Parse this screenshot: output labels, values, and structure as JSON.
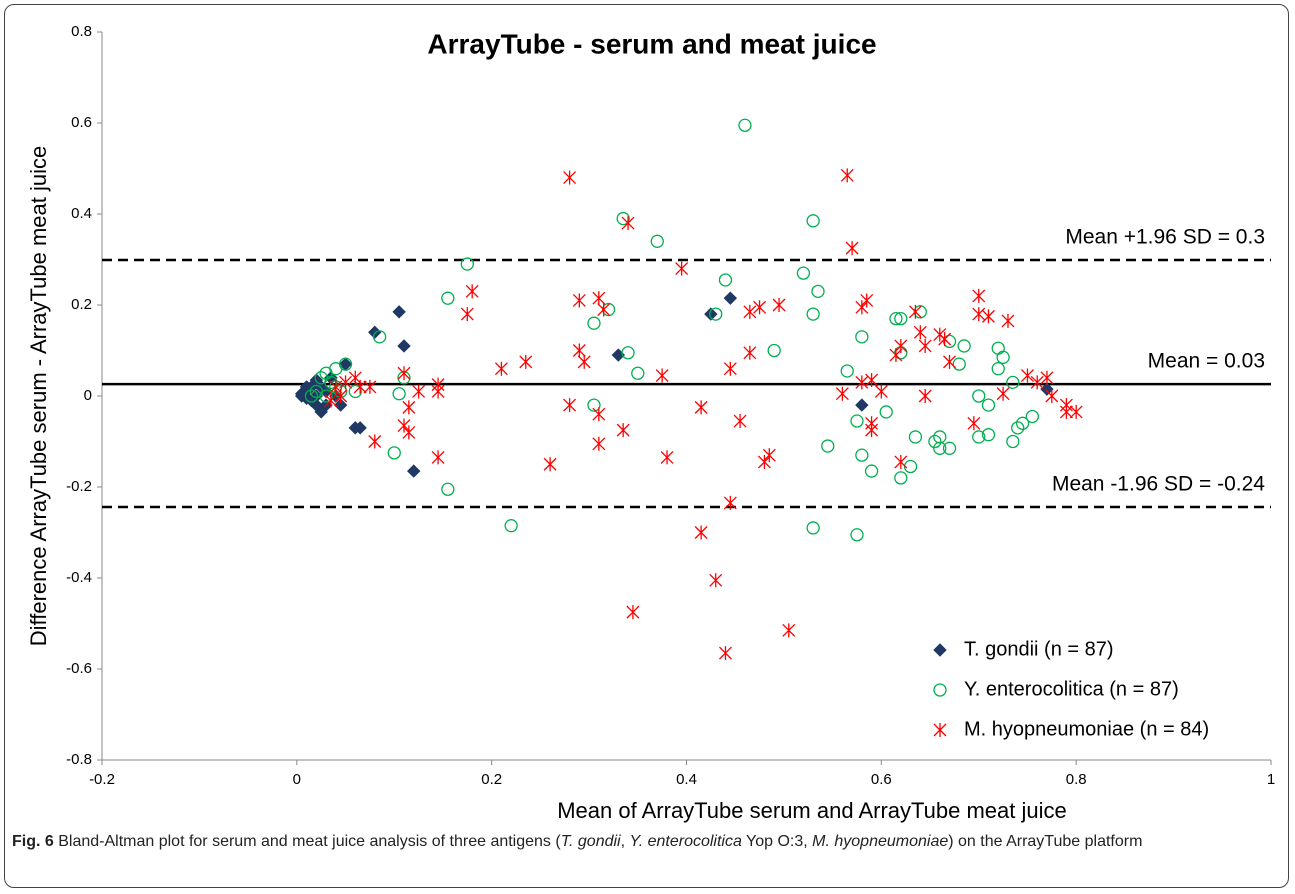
{
  "chart_data": {
    "type": "scatter",
    "title": "ArrayTube - serum and meat juice",
    "xlabel": "Mean of ArrayTube serum and ArrayTube meat juice",
    "ylabel": "Difference ArrayTube serum - ArrayTube meat juice",
    "xlim": [
      -0.2,
      1
    ],
    "ylim": [
      -0.8,
      0.8
    ],
    "xticks": [
      -0.2,
      0,
      0.2,
      0.4,
      0.6,
      0.8,
      1
    ],
    "yticks": [
      -0.8,
      -0.6,
      -0.4,
      -0.2,
      0,
      0.2,
      0.4,
      0.6,
      0.8
    ],
    "legend": "lower right",
    "reference_lines": [
      {
        "value": 0.299,
        "label": "Mean +1.96 SD = 0.3",
        "style": "dashed"
      },
      {
        "value": 0.026,
        "label": "Mean = 0.03",
        "style": "solid"
      },
      {
        "value": -0.244,
        "label": "Mean -1.96 SD = -0.24",
        "style": "dashed"
      }
    ],
    "series": [
      {
        "name": "T. gondii (n = 87)",
        "color": "#1f3864",
        "marker": "diamond",
        "x": [
          0.08,
          0.105,
          0.11,
          0.12,
          0.06,
          0.065,
          0.05,
          0.045,
          0.33,
          0.425,
          0.445,
          0.58,
          0.77,
          0.005,
          0.01,
          0.015,
          0.02,
          0.025,
          0.02,
          0.03,
          0.01,
          0.015,
          0.03,
          0.035,
          0.04,
          0.025,
          0.005,
          0.02,
          0.01
        ],
        "values": [
          0.14,
          0.185,
          0.11,
          -0.165,
          -0.07,
          -0.07,
          0.07,
          -0.02,
          0.09,
          0.18,
          0.215,
          -0.02,
          0.015,
          0.005,
          -0.005,
          0.02,
          -0.02,
          -0.035,
          0.035,
          0.01,
          0.01,
          -0.01,
          -0.02,
          0.04,
          0,
          0.02,
          0,
          0,
          0.02
        ]
      },
      {
        "name": "Y. enterocolitica (n = 87)",
        "color": "#00b050",
        "marker": "circle",
        "x": [
          0.46,
          0.335,
          0.53,
          0.37,
          0.175,
          0.155,
          0.52,
          0.44,
          0.535,
          0.43,
          0.53,
          0.32,
          0.305,
          0.085,
          0.58,
          0.62,
          0.615,
          0.64,
          0.49,
          0.34,
          0.35,
          0.565,
          0.62,
          0.67,
          0.685,
          0.72,
          0.725,
          0.68,
          0.735,
          0.7,
          0.71,
          0.72,
          0.605,
          0.575,
          0.305,
          0.105,
          0.11,
          0.06,
          0.05,
          0.1,
          0.155,
          0.22,
          0.53,
          0.575,
          0.545,
          0.58,
          0.59,
          0.62,
          0.63,
          0.635,
          0.655,
          0.66,
          0.67,
          0.66,
          0.7,
          0.71,
          0.735,
          0.74,
          0.745,
          0.755,
          0.02,
          0.03,
          0.035,
          0.04,
          0.025,
          0.03,
          0.045,
          0.015,
          0.04
        ],
        "values": [
          0.595,
          0.39,
          0.385,
          0.34,
          0.29,
          0.215,
          0.27,
          0.255,
          0.23,
          0.18,
          0.18,
          0.19,
          0.16,
          0.13,
          0.13,
          0.17,
          0.17,
          0.185,
          0.1,
          0.095,
          0.05,
          0.055,
          0.095,
          0.12,
          0.11,
          0.105,
          0.085,
          0.07,
          0.03,
          0,
          -0.02,
          0.06,
          -0.035,
          -0.055,
          -0.02,
          0.005,
          0.04,
          0.01,
          0.07,
          -0.125,
          -0.205,
          -0.285,
          -0.29,
          -0.305,
          -0.11,
          -0.13,
          -0.165,
          -0.18,
          -0.155,
          -0.09,
          -0.1,
          -0.115,
          -0.115,
          -0.09,
          -0.09,
          -0.085,
          -0.1,
          -0.07,
          -0.06,
          -0.045,
          0.01,
          0.05,
          0.03,
          0.02,
          0.04,
          0,
          0.01,
          0,
          0.06
        ]
      },
      {
        "name": "M. hyopneumoniae (n = 84)",
        "color": "#ff0000",
        "marker": "star",
        "x": [
          0.28,
          0.565,
          0.34,
          0.57,
          0.395,
          0.18,
          0.175,
          0.29,
          0.31,
          0.315,
          0.465,
          0.475,
          0.495,
          0.58,
          0.585,
          0.635,
          0.7,
          0.7,
          0.71,
          0.73,
          0.64,
          0.66,
          0.665,
          0.62,
          0.615,
          0.645,
          0.67,
          0.29,
          0.295,
          0.235,
          0.21,
          0.465,
          0.445,
          0.375,
          0.58,
          0.59,
          0.56,
          0.6,
          0.645,
          0.725,
          0.75,
          0.76,
          0.77,
          0.775,
          0.79,
          0.8,
          0.79,
          0.695,
          0.59,
          0.59,
          0.62,
          0.31,
          0.28,
          0.335,
          0.31,
          0.415,
          0.455,
          0.38,
          0.26,
          0.48,
          0.485,
          0.445,
          0.415,
          0.43,
          0.345,
          0.505,
          0.44,
          0.145,
          0.08,
          0.11,
          0.115,
          0.115,
          0.11,
          0.125,
          0.145,
          0.145,
          0.065,
          0.06,
          0.05,
          0.045,
          0.035,
          0.04,
          0.075
        ],
        "values": [
          0.48,
          0.485,
          0.38,
          0.325,
          0.28,
          0.23,
          0.18,
          0.21,
          0.215,
          0.19,
          0.185,
          0.195,
          0.2,
          0.195,
          0.21,
          0.185,
          0.22,
          0.18,
          0.175,
          0.165,
          0.14,
          0.135,
          0.125,
          0.11,
          0.09,
          0.11,
          0.075,
          0.1,
          0.075,
          0.075,
          0.06,
          0.095,
          0.06,
          0.045,
          0.03,
          0.035,
          0.005,
          0.01,
          0,
          0.005,
          0.045,
          0.03,
          0.04,
          0,
          -0.02,
          -0.035,
          -0.035,
          -0.06,
          -0.06,
          -0.075,
          -0.145,
          -0.04,
          -0.02,
          -0.075,
          -0.105,
          -0.025,
          -0.055,
          -0.135,
          -0.15,
          -0.145,
          -0.13,
          -0.235,
          -0.3,
          -0.405,
          -0.475,
          -0.515,
          -0.565,
          -0.135,
          -0.1,
          -0.065,
          -0.08,
          -0.025,
          0.05,
          0.01,
          0.025,
          0.01,
          0.02,
          0.04,
          0.03,
          0,
          -0.01,
          0.02,
          0.02
        ]
      }
    ]
  },
  "caption": {
    "label": "Fig. 6",
    "parts": [
      " Bland-Altman plot for serum and meat juice analysis of three antigens (",
      "T. gondii",
      ", ",
      "Y. enterocolitica",
      " Yop O:3, ",
      "M. hyopneumoniae",
      ") on the ArrayTube platform"
    ]
  }
}
